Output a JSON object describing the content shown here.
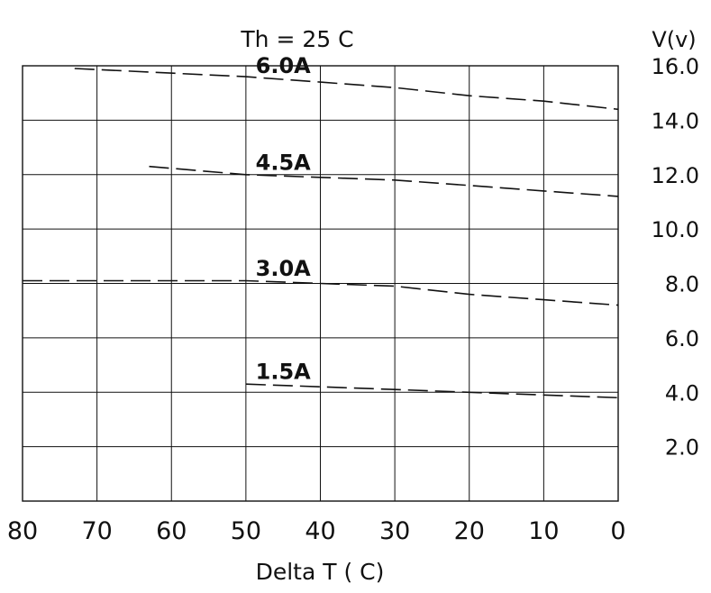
{
  "chart_data": {
    "type": "line",
    "title": "Th = 25 C",
    "xlabel": "Delta  T ( C)",
    "ylabel": "V(v)",
    "x_ticks": [
      "80",
      "70",
      "60",
      "50",
      "40",
      "30",
      "20",
      "10",
      "0"
    ],
    "y_ticks": [
      "2.0",
      "4.0",
      "6.0",
      "8.0",
      "10.0",
      "12.0",
      "14.0",
      "16.0"
    ],
    "xlim": [
      80,
      0
    ],
    "ylim": [
      0,
      16
    ],
    "grid": true,
    "series": [
      {
        "name": "6.0A",
        "x": [
          73,
          50,
          40,
          30,
          20,
          10,
          0
        ],
        "y": [
          15.9,
          15.6,
          15.4,
          15.2,
          14.9,
          14.7,
          14.4
        ]
      },
      {
        "name": "4.5A",
        "x": [
          63,
          50,
          40,
          30,
          20,
          10,
          0
        ],
        "y": [
          12.3,
          12.0,
          11.9,
          11.8,
          11.6,
          11.4,
          11.2
        ]
      },
      {
        "name": "3.0A",
        "x": [
          80,
          50,
          40,
          30,
          20,
          10,
          0
        ],
        "y": [
          8.1,
          8.1,
          8.0,
          7.9,
          7.6,
          7.4,
          7.2
        ]
      },
      {
        "name": "1.5A",
        "x": [
          50,
          40,
          30,
          20,
          10,
          0
        ],
        "y": [
          4.3,
          4.2,
          4.1,
          4.0,
          3.9,
          3.8
        ]
      }
    ]
  }
}
